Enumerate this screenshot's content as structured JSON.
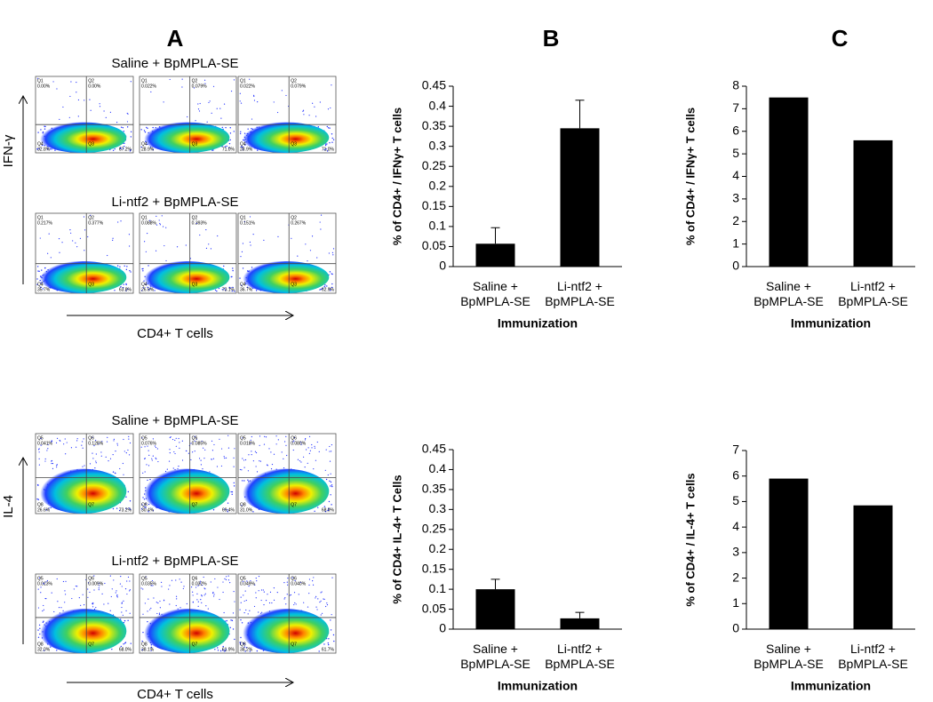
{
  "panel_labels": [
    "A",
    "B",
    "C"
  ],
  "flow": [
    {
      "y_label": "IFN-γ",
      "x_label": "CD4+ T cells",
      "rows": [
        {
          "title": "Saline + BpMPLA-SE",
          "plots": [
            [
              [
                "Q1",
                "0.00%"
              ],
              [
                "Q2",
                "0.00%"
              ],
              [
                "Q4",
                "32.8%"
              ],
              [
                "Q3",
                "67.2%"
              ]
            ],
            [
              [
                "Q1",
                "0.022%"
              ],
              [
                "Q2",
                "0.079%"
              ],
              [
                "Q4",
                "28.9%"
              ],
              [
                "Q3",
                "71.0%"
              ]
            ],
            [
              [
                "Q1",
                "0.022%"
              ],
              [
                "Q2",
                "0.079%"
              ],
              [
                "Q4",
                "28.9%"
              ],
              [
                "Q3",
                "71.0%"
              ]
            ]
          ]
        },
        {
          "title": "Li-ntf2 + BpMPLA-SE",
          "plots": [
            [
              [
                "Q1",
                "0.217%"
              ],
              [
                "Q2",
                "0.377%"
              ],
              [
                "Q4",
                "35.7%"
              ],
              [
                "Q3",
                "63.8%"
              ]
            ],
            [
              [
                "Q1",
                "0.088%"
              ],
              [
                "Q2",
                "0.393%"
              ],
              [
                "Q4",
                "26.6%"
              ],
              [
                "Q3",
                "73.1%"
              ]
            ],
            [
              [
                "Q1",
                "0.151%"
              ],
              [
                "Q2",
                "0.267%"
              ],
              [
                "Q4",
                "36.7%"
              ],
              [
                "Q3",
                "62.9%"
              ]
            ]
          ]
        }
      ]
    },
    {
      "y_label": "IL-4",
      "x_label": "CD4+ T cells",
      "rows": [
        {
          "title": "Saline + BpMPLA-SE",
          "plots": [
            [
              [
                "Q5",
                "0.041%"
              ],
              [
                "Q6",
                "0.128%"
              ],
              [
                "Q8",
                "26.6%"
              ],
              [
                "Q7",
                "73.2%"
              ]
            ],
            [
              [
                "Q5",
                "0.076%"
              ],
              [
                "Q6",
                "0.085%"
              ],
              [
                "Q8",
                "30.4%"
              ],
              [
                "Q7",
                "69.4%"
              ]
            ],
            [
              [
                "Q5",
                "0.018%"
              ],
              [
                "Q6",
                "0.080%"
              ],
              [
                "Q8",
                "31.0%"
              ],
              [
                "Q7",
                "68.9%"
              ]
            ]
          ]
        },
        {
          "title": "Li-ntf2 + BpMPLA-SE",
          "plots": [
            [
              [
                "Q5",
                "0.013%"
              ],
              [
                "Q6",
                "0.009%"
              ],
              [
                "Q8",
                "32.0%"
              ],
              [
                "Q7",
                "68.0%"
              ]
            ],
            [
              [
                "Q5",
                "0.035%"
              ],
              [
                "Q6",
                "0.032%"
              ],
              [
                "Q8",
                "38.1%"
              ],
              [
                "Q7",
                "61.9%"
              ]
            ],
            [
              [
                "Q5",
                "0.049%"
              ],
              [
                "Q6",
                "0.040%"
              ],
              [
                "Q8",
                "38.2%"
              ],
              [
                "Q7",
                "61.7%"
              ]
            ]
          ]
        }
      ]
    }
  ],
  "chart_data": [
    {
      "type": "bar",
      "y_label": "% of CD4+ / IFNγ+ T cells",
      "x_label": "Immunization",
      "categories": [
        "Saline +\nBpMPLA-SE",
        "Li-ntf2 +\nBpMPLA-SE"
      ],
      "values": [
        0.057,
        0.345
      ],
      "errors": [
        0.04,
        0.07
      ],
      "color": "#000000",
      "ylim": [
        0,
        0.45
      ],
      "yticks": [
        0,
        0.05,
        0.1,
        0.15,
        0.2,
        0.25,
        0.3,
        0.35,
        0.4,
        0.45
      ]
    },
    {
      "type": "bar",
      "y_label": "% of CD4+ / IFNγ+ T cells",
      "x_label": "Immunization",
      "categories": [
        "Saline +\nBpMPLA-SE",
        "Li-ntf2 +\nBpMPLA-SE"
      ],
      "values": [
        7.5,
        5.6
      ],
      "color": "#000000",
      "ylim": [
        0,
        8
      ],
      "yticks": [
        0,
        1,
        2,
        3,
        4,
        5,
        6,
        7,
        8
      ]
    },
    {
      "type": "bar",
      "y_label": "% of CD4+ IL-4+ T Cells",
      "x_label": "Immunization",
      "categories": [
        "Saline +\nBpMPLA-SE",
        "Li-ntf2 +\nBpMPLA-SE"
      ],
      "values": [
        0.1,
        0.027
      ],
      "errors": [
        0.025,
        0.015
      ],
      "color": "#000000",
      "ylim": [
        0,
        0.45
      ],
      "yticks": [
        0,
        0.05,
        0.1,
        0.15,
        0.2,
        0.25,
        0.3,
        0.35,
        0.4,
        0.45
      ]
    },
    {
      "type": "bar",
      "y_label": "% of CD4+ / IL-4+ T cells",
      "x_label": "Immunization",
      "categories": [
        "Saline +\nBpMPLA-SE",
        "Li-ntf2 +\nBpMPLA-SE"
      ],
      "values": [
        5.9,
        4.85
      ],
      "color": "#000000",
      "ylim": [
        0,
        7
      ],
      "yticks": [
        0,
        1,
        2,
        3,
        4,
        5,
        6,
        7
      ]
    }
  ]
}
